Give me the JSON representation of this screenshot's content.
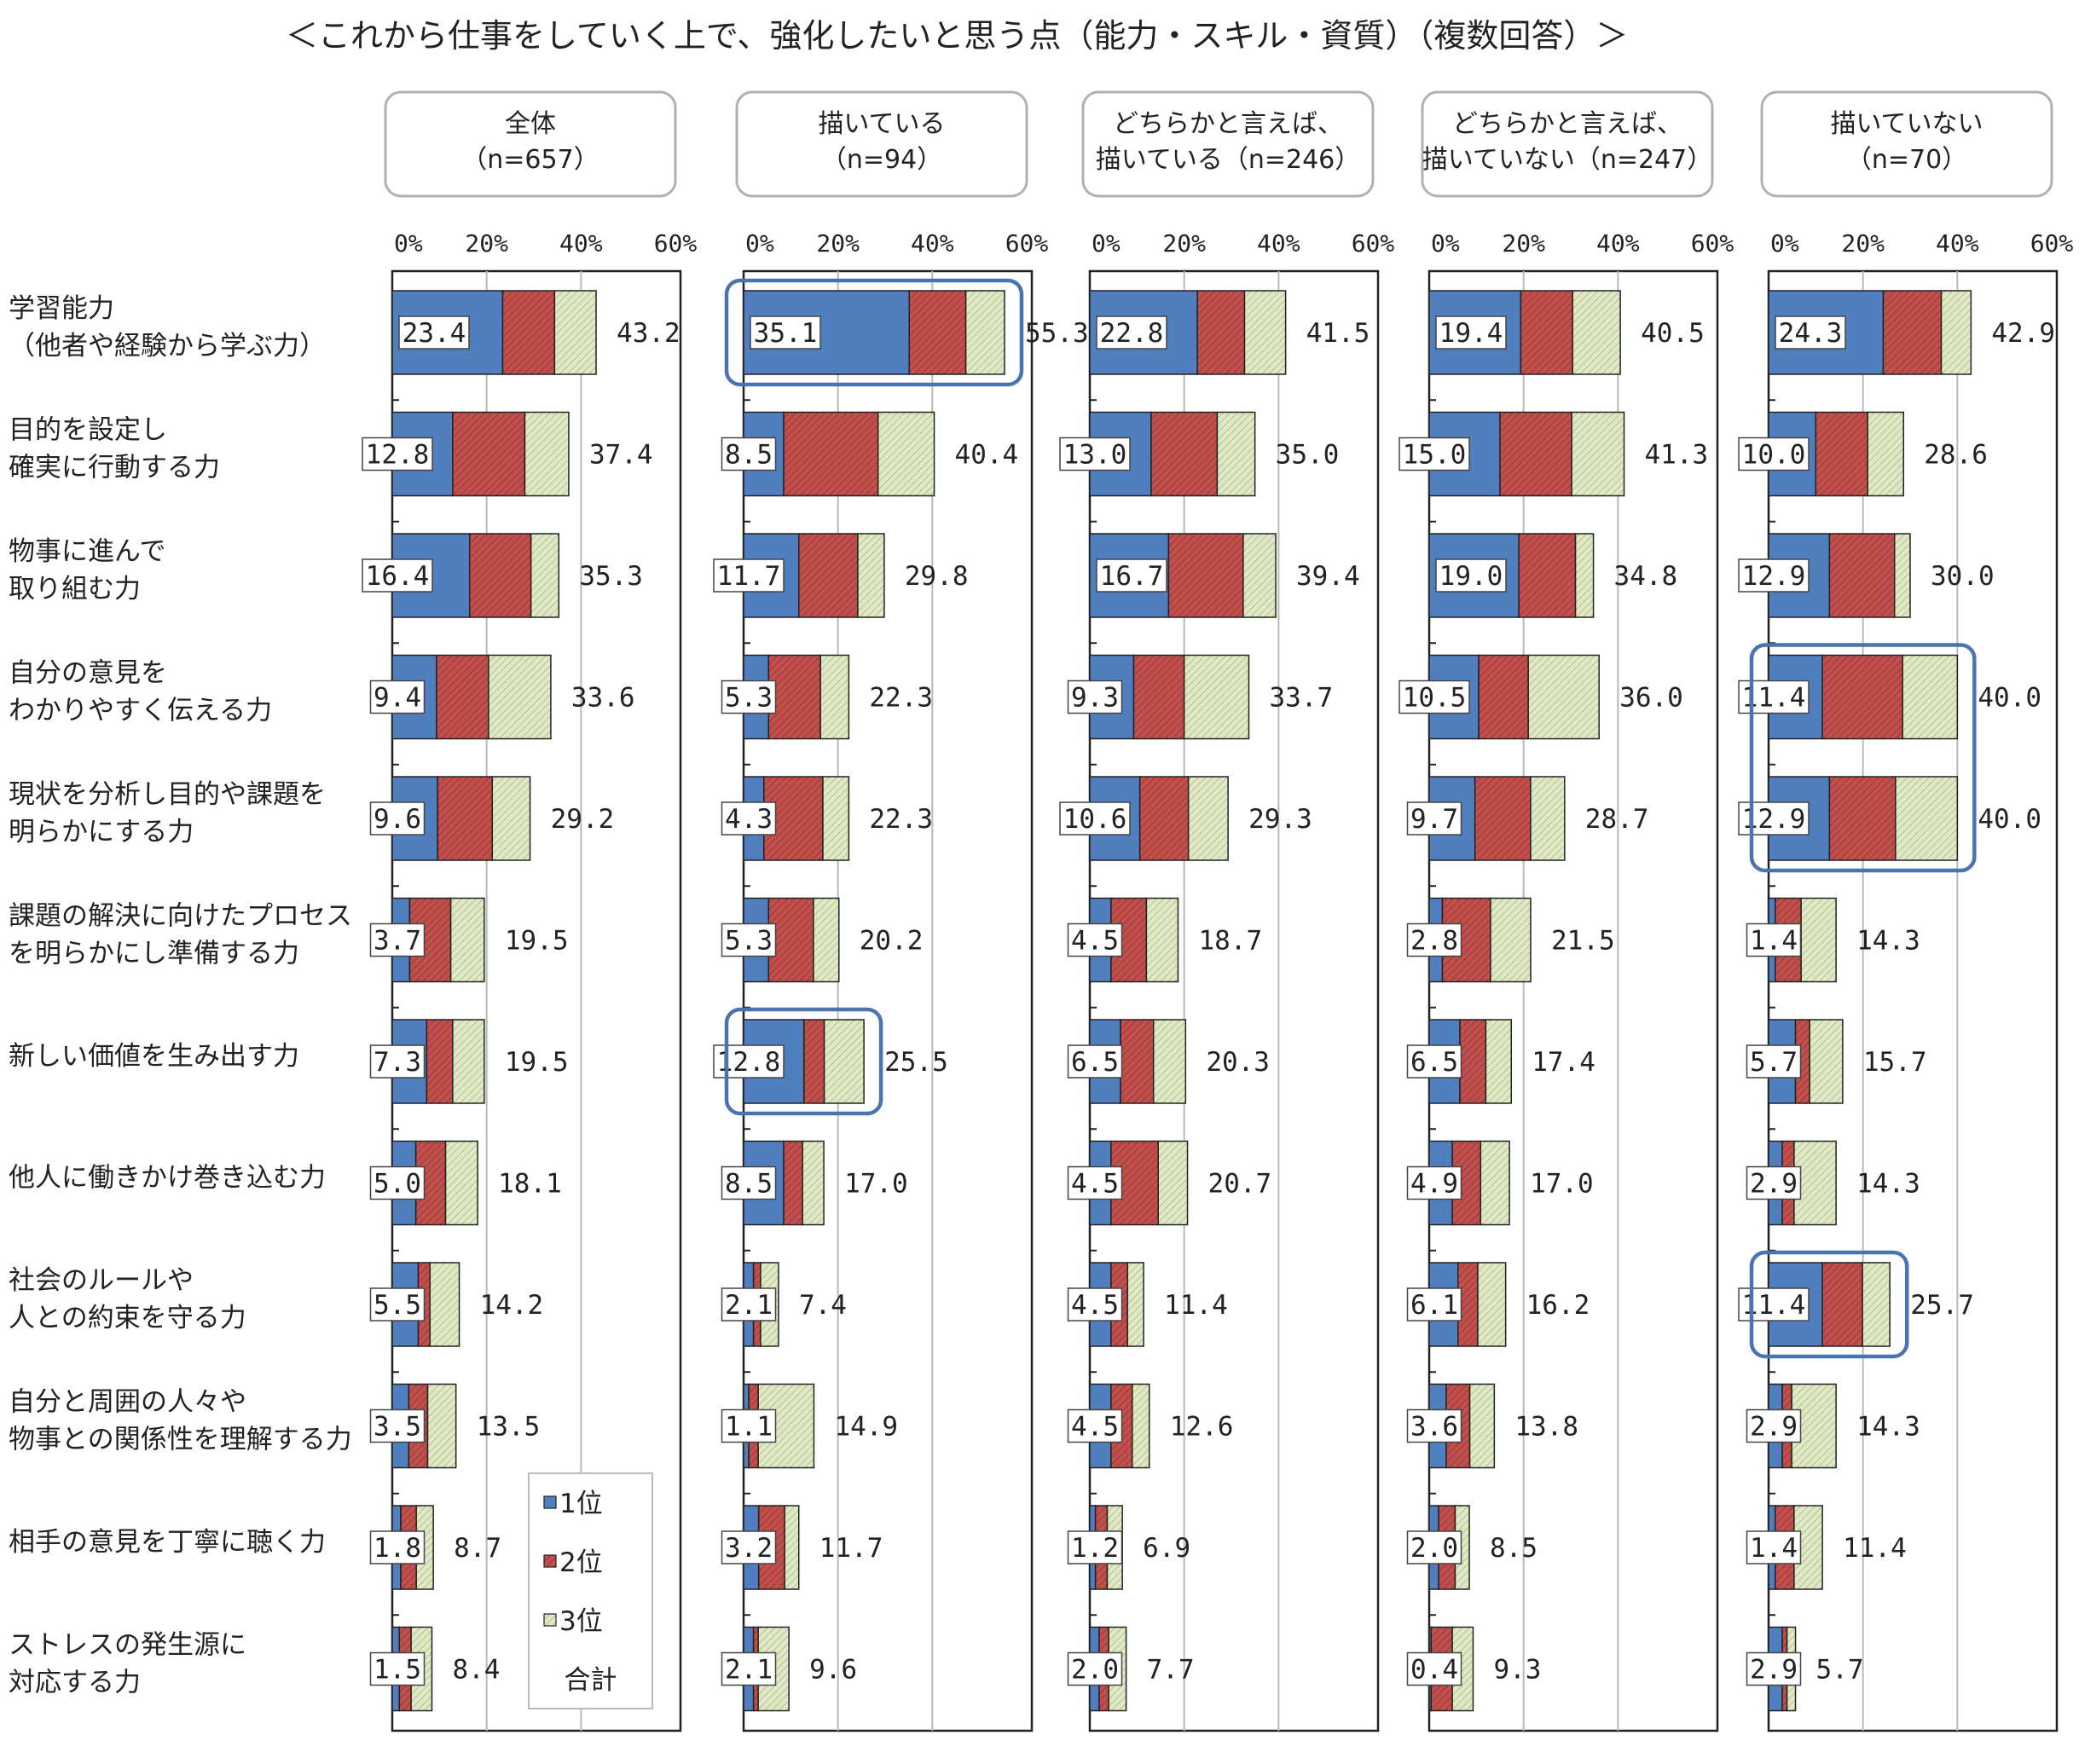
{
  "chart_data": {
    "type": "bar",
    "stacked": true,
    "orientation": "horizontal",
    "title": "＜これから仕事をしていく上で、強化したいと思う点（能力・スキル・資質）（複数回答）＞",
    "categories": [
      [
        "学習能力",
        "（他者や経験から学ぶ力）"
      ],
      [
        "目的を設定し",
        "確実に行動する力"
      ],
      [
        "物事に進んで",
        "取り組む力"
      ],
      [
        "自分の意見を",
        "わかりやすく伝える力"
      ],
      [
        "現状を分析し目的や課題を",
        "明らかにする力"
      ],
      [
        "課題の解決に向けたプロセス",
        "を明らかにし準備する力"
      ],
      [
        "新しい価値を生み出す力"
      ],
      [
        "他人に働きかけ巻き込む力"
      ],
      [
        "社会のルールや",
        "人との約束を守る力"
      ],
      [
        "自分と周囲の人々や",
        "物事との関係性を理解する力"
      ],
      [
        "相手の意見を丁寧に聴く力"
      ],
      [
        "ストレスの発生源に",
        "対応する力"
      ]
    ],
    "xlim": [
      0,
      60
    ],
    "xticks": [
      "0%",
      "20%",
      "40%",
      "60%"
    ],
    "grid": true,
    "legend": {
      "position": "inside-bottom-left-panel",
      "entries": [
        "1位",
        "2位",
        "3位",
        "合計"
      ]
    },
    "colors": {
      "rank1": "#4f7fbf",
      "rank2": "#c0504d",
      "rank3": "#d7e4bd",
      "highlight": "#4a74b0"
    },
    "panels": [
      {
        "label": [
          "全体",
          "（n=657）"
        ],
        "rank1": [
          23.4,
          12.8,
          16.4,
          9.4,
          9.6,
          3.7,
          7.3,
          5.0,
          5.5,
          3.5,
          1.8,
          1.5
        ],
        "total": [
          43.2,
          37.4,
          35.3,
          33.6,
          29.2,
          19.5,
          19.5,
          18.1,
          14.2,
          13.5,
          8.7,
          8.4
        ],
        "rank2": [
          11.0,
          15.3,
          13.0,
          11.0,
          11.6,
          8.7,
          5.5,
          6.3,
          2.5,
          4.0,
          3.3,
          2.5
        ]
      },
      {
        "label": [
          "描いている",
          "（n=94）"
        ],
        "rank1": [
          35.1,
          8.5,
          11.7,
          5.3,
          4.3,
          5.3,
          12.8,
          8.5,
          2.1,
          1.1,
          3.2,
          2.1
        ],
        "total": [
          55.3,
          40.4,
          29.8,
          22.3,
          22.3,
          20.2,
          25.5,
          17.0,
          7.4,
          14.9,
          11.7,
          9.6
        ],
        "rank2": [
          12.0,
          20.0,
          12.5,
          11.0,
          12.5,
          9.5,
          4.3,
          4.0,
          1.5,
          2.0,
          5.5,
          1.0
        ]
      },
      {
        "label": [
          "どちらかと言えば、",
          "描いている（n=246）"
        ],
        "rank1": [
          22.8,
          13.0,
          16.7,
          9.3,
          10.6,
          4.5,
          6.5,
          4.5,
          4.5,
          4.5,
          1.2,
          2.0
        ],
        "total": [
          41.5,
          35.0,
          39.4,
          33.7,
          29.3,
          18.7,
          20.3,
          20.7,
          11.4,
          12.6,
          6.9,
          7.7
        ],
        "rank2": [
          10.0,
          14.0,
          15.8,
          10.7,
          10.3,
          7.5,
          7.0,
          10.0,
          3.5,
          4.5,
          2.5,
          2.0
        ]
      },
      {
        "label": [
          "どちらかと言えば、",
          "描いていない（n=247）"
        ],
        "rank1": [
          19.4,
          15.0,
          19.0,
          10.5,
          9.7,
          2.8,
          6.5,
          4.9,
          6.1,
          3.6,
          2.0,
          0.4
        ],
        "total": [
          40.5,
          41.3,
          34.8,
          36.0,
          28.7,
          21.5,
          17.4,
          17.0,
          16.2,
          13.8,
          8.5,
          9.3
        ],
        "rank2": [
          11.0,
          15.2,
          12.0,
          10.5,
          11.8,
          10.2,
          5.5,
          6.0,
          4.2,
          5.0,
          3.5,
          4.5
        ]
      },
      {
        "label": [
          "描いていない",
          "（n=70）"
        ],
        "rank1": [
          24.3,
          10.0,
          12.9,
          11.4,
          12.9,
          1.4,
          5.7,
          2.9,
          11.4,
          2.9,
          1.4,
          2.9
        ],
        "total": [
          42.9,
          28.6,
          30.0,
          40.0,
          40.0,
          14.3,
          15.7,
          14.3,
          25.7,
          14.3,
          11.4,
          5.7
        ],
        "rank2": [
          12.3,
          11.0,
          13.8,
          17.0,
          14.0,
          5.5,
          3.0,
          2.5,
          8.5,
          2.0,
          4.0,
          1.0
        ]
      }
    ],
    "highlights": [
      {
        "panel": 1,
        "rows": [
          0
        ]
      },
      {
        "panel": 1,
        "rows": [
          6
        ]
      },
      {
        "panel": 4,
        "rows": [
          3,
          4
        ]
      },
      {
        "panel": 4,
        "rows": [
          8
        ]
      }
    ]
  }
}
